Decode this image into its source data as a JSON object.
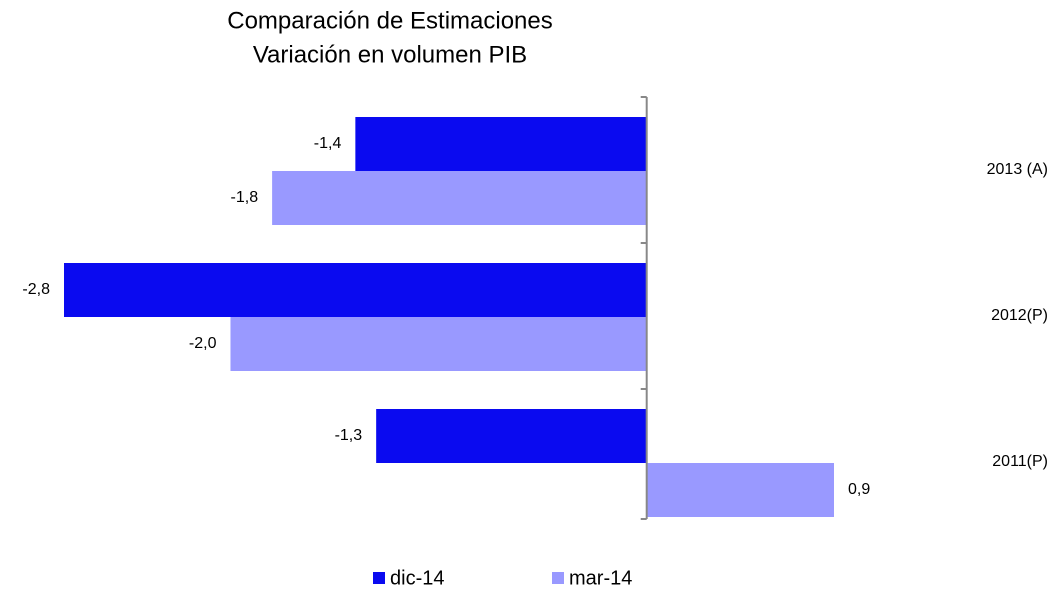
{
  "chart_data": {
    "type": "bar",
    "orientation": "horizontal",
    "title": "Comparación de Estimaciones",
    "subtitle": "Variación en volumen PIB",
    "categories": [
      "2013 (A)",
      "2012(P)",
      "2011(P)"
    ],
    "series": [
      {
        "name": "dic-14",
        "color": "#0a0af0",
        "values": [
          -1.4,
          -2.8,
          -1.3
        ],
        "value_labels": [
          "-1,4",
          "-2,8",
          "-1,3"
        ]
      },
      {
        "name": "mar-14",
        "color": "#9999ff",
        "values": [
          -1.8,
          -2.0,
          0.9
        ],
        "value_labels": [
          "-1,8",
          "-2,0",
          "0,9"
        ]
      }
    ],
    "legend": "bottom"
  }
}
